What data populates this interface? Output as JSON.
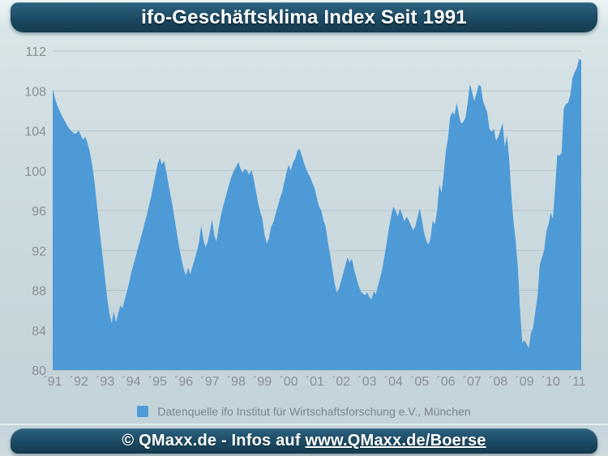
{
  "header": {
    "title": "ifo-Geschäftsklima Index Seit 1991"
  },
  "footer": {
    "text_prefix": "© QMaxx.de - Infos auf ",
    "link_text": "www.QMaxx.de/Boerse"
  },
  "legend": {
    "label": "Datenquelle ifo Institut für Wirtschaftsforschung e.V., München",
    "swatch_color": "#4E9AD7"
  },
  "colors": {
    "banner_teal": "#1C4A63",
    "area_fill": "#4E9AD7",
    "gridline": "#AFBEC4",
    "axis_label": "#888F94",
    "plot_bg": "#C9D9DE"
  },
  "chart_data": {
    "type": "area",
    "title": "ifo-Geschäftsklima Index Seit 1991",
    "series_name": "ifo-Geschäftsklima Index",
    "frequency": "monthly",
    "x_range": [
      "1991-01",
      "2011-03"
    ],
    "x_tick_labels": [
      "´91",
      "´92",
      "´93",
      "´94",
      "´95",
      "´96",
      "´97",
      "´98",
      "´99",
      "´00",
      "´01",
      "´02",
      "´03",
      "´04",
      "´05",
      "´06",
      "´07",
      "´08",
      "´09",
      "´10",
      "´11"
    ],
    "yticks": [
      80,
      84,
      88,
      92,
      96,
      100,
      104,
      108,
      112
    ],
    "ylim": [
      80,
      112
    ],
    "grid": true,
    "legend_position": "bottom",
    "xlabel": "",
    "ylabel": "",
    "values": [
      108.2,
      107.3,
      106.6,
      106.1,
      105.6,
      105.2,
      104.8,
      104.4,
      104.1,
      103.9,
      103.7,
      103.8,
      104.0,
      103.5,
      103.1,
      103.4,
      102.7,
      101.9,
      100.7,
      99.1,
      97.1,
      95.0,
      93.0,
      91.1,
      89.1,
      87.1,
      85.7,
      84.7,
      85.9,
      84.8,
      85.7,
      86.5,
      86.2,
      87.1,
      87.9,
      88.8,
      89.8,
      90.6,
      91.4,
      92.2,
      93.0,
      93.8,
      94.7,
      95.5,
      96.4,
      97.3,
      98.4,
      99.5,
      100.6,
      101.3,
      100.6,
      101.0,
      99.9,
      98.7,
      97.5,
      96.3,
      94.9,
      93.5,
      92.2,
      91.1,
      90.1,
      89.5,
      90.3,
      89.6,
      90.4,
      91.1,
      91.9,
      92.8,
      94.5,
      93.1,
      92.3,
      92.9,
      93.9,
      95.1,
      93.5,
      92.9,
      94.3,
      95.5,
      96.4,
      97.2,
      98.0,
      98.8,
      99.5,
      100.0,
      100.4,
      100.9,
      100.2,
      99.8,
      100.2,
      100.0,
      99.6,
      100.1,
      99.2,
      98.0,
      96.8,
      95.9,
      95.2,
      93.6,
      92.7,
      93.2,
      94.4,
      94.8,
      95.6,
      96.4,
      97.2,
      97.8,
      98.8,
      99.8,
      100.6,
      100.0,
      100.8,
      101.2,
      102.0,
      102.2,
      101.6,
      100.8,
      100.2,
      99.7,
      99.3,
      98.7,
      98.2,
      97.2,
      96.4,
      96.0,
      95.0,
      94.4,
      92.8,
      91.6,
      90.2,
      88.8,
      87.8,
      88.1,
      88.9,
      89.7,
      90.5,
      91.3,
      90.8,
      91.2,
      90.1,
      89.3,
      88.5,
      87.9,
      87.7,
      87.5,
      87.8,
      87.3,
      87.1,
      87.9,
      87.6,
      88.5,
      89.3,
      90.3,
      91.5,
      92.9,
      94.3,
      95.5,
      96.4,
      96.0,
      95.4,
      96.2,
      95.6,
      94.9,
      95.4,
      95.0,
      94.5,
      94.0,
      94.4,
      95.3,
      96.2,
      95.2,
      93.8,
      93.0,
      92.6,
      93.2,
      95.0,
      94.6,
      96.0,
      98.6,
      97.8,
      99.6,
      102.0,
      103.3,
      105.4,
      105.9,
      105.6,
      106.8,
      105.6,
      104.7,
      104.9,
      105.3,
      106.8,
      108.7,
      107.9,
      107.0,
      107.7,
      108.6,
      108.5,
      107.0,
      106.4,
      105.8,
      104.2,
      103.9,
      104.2,
      103.0,
      103.4,
      104.1,
      104.8,
      102.4,
      103.5,
      101.2,
      97.5,
      94.8,
      92.9,
      90.2,
      85.9,
      82.7,
      83.0,
      82.6,
      82.2,
      83.7,
      84.3,
      85.9,
      87.4,
      90.5,
      91.3,
      92.0,
      93.9,
      94.6,
      95.8,
      95.2,
      98.1,
      101.6,
      101.5,
      101.8,
      106.2,
      106.7,
      106.8,
      107.6,
      109.3,
      109.9,
      110.3,
      111.2,
      111.1
    ]
  }
}
